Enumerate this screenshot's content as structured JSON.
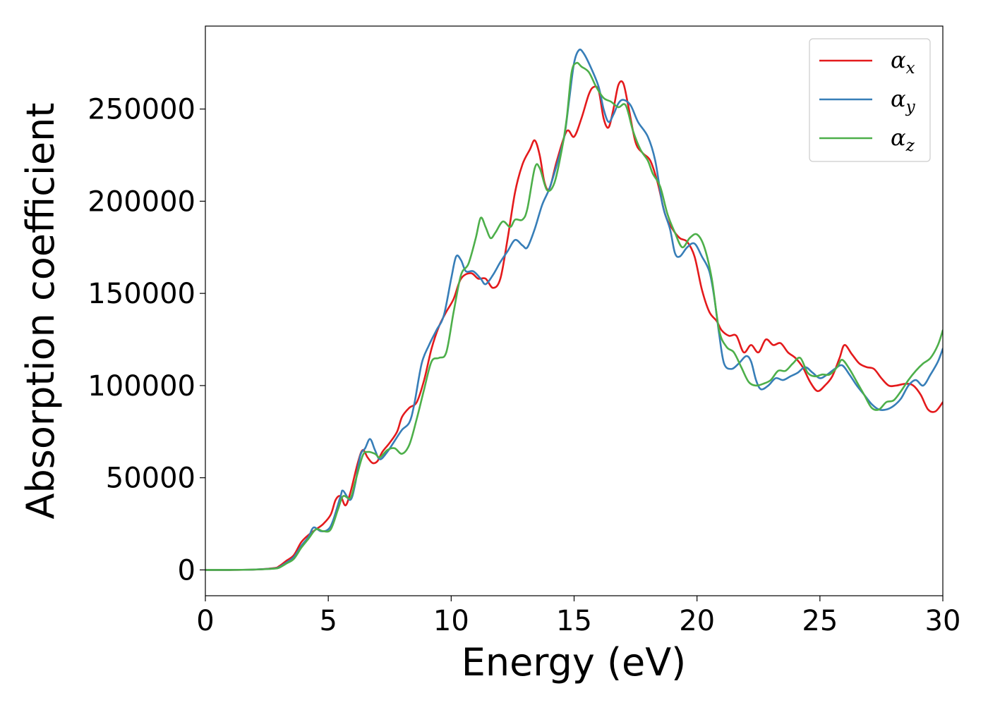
{
  "chart_data": {
    "type": "line",
    "title": "",
    "xlabel": "Energy (eV)",
    "ylabel": "Absorption coefficient",
    "xlim": [
      0,
      30
    ],
    "ylim": [
      -14000,
      295000
    ],
    "xticks": [
      0,
      5,
      10,
      15,
      20,
      25,
      30
    ],
    "yticks": [
      0,
      50000,
      100000,
      150000,
      200000,
      250000
    ],
    "grid": false,
    "legend": {
      "placement": "top-right"
    },
    "series": [
      {
        "name": "α_x",
        "symbol": "α",
        "subscript": "x",
        "color": "#e41a1c",
        "points": [
          [
            0,
            0
          ],
          [
            1,
            0
          ],
          [
            2,
            200
          ],
          [
            2.8,
            1000
          ],
          [
            3,
            2000
          ],
          [
            3.3,
            5000
          ],
          [
            3.6,
            8000
          ],
          [
            3.9,
            15000
          ],
          [
            4.2,
            19000
          ],
          [
            4.5,
            22000
          ],
          [
            4.8,
            25000
          ],
          [
            5.1,
            30000
          ],
          [
            5.3,
            38000
          ],
          [
            5.5,
            40000
          ],
          [
            5.7,
            35000
          ],
          [
            5.9,
            42000
          ],
          [
            6.2,
            58000
          ],
          [
            6.4,
            65000
          ],
          [
            6.6,
            61000
          ],
          [
            6.8,
            58000
          ],
          [
            7.0,
            59000
          ],
          [
            7.2,
            64000
          ],
          [
            7.5,
            69000
          ],
          [
            7.8,
            75000
          ],
          [
            8.0,
            83000
          ],
          [
            8.3,
            88000
          ],
          [
            8.6,
            91000
          ],
          [
            8.9,
            103000
          ],
          [
            9.2,
            120000
          ],
          [
            9.5,
            132000
          ],
          [
            9.8,
            140000
          ],
          [
            10.1,
            147000
          ],
          [
            10.4,
            158000
          ],
          [
            10.8,
            161000
          ],
          [
            11.1,
            158000
          ],
          [
            11.4,
            158000
          ],
          [
            11.7,
            153000
          ],
          [
            12.0,
            158000
          ],
          [
            12.3,
            180000
          ],
          [
            12.6,
            205000
          ],
          [
            12.9,
            220000
          ],
          [
            13.2,
            228000
          ],
          [
            13.4,
            233000
          ],
          [
            13.6,
            225000
          ],
          [
            13.8,
            210000
          ],
          [
            14.0,
            207000
          ],
          [
            14.3,
            222000
          ],
          [
            14.7,
            238000
          ],
          [
            15.0,
            235000
          ],
          [
            15.3,
            245000
          ],
          [
            15.6,
            258000
          ],
          [
            15.8,
            262000
          ],
          [
            16.0,
            260000
          ],
          [
            16.2,
            245000
          ],
          [
            16.4,
            240000
          ],
          [
            16.6,
            250000
          ],
          [
            16.8,
            263000
          ],
          [
            17.0,
            264000
          ],
          [
            17.2,
            252000
          ],
          [
            17.5,
            232000
          ],
          [
            17.8,
            226000
          ],
          [
            18.1,
            222000
          ],
          [
            18.4,
            210000
          ],
          [
            18.7,
            193000
          ],
          [
            19.0,
            185000
          ],
          [
            19.3,
            180000
          ],
          [
            19.6,
            178000
          ],
          [
            19.9,
            170000
          ],
          [
            20.2,
            152000
          ],
          [
            20.5,
            140000
          ],
          [
            20.8,
            135000
          ],
          [
            21.0,
            130000
          ],
          [
            21.3,
            127000
          ],
          [
            21.6,
            127000
          ],
          [
            21.9,
            118000
          ],
          [
            22.2,
            122000
          ],
          [
            22.5,
            118000
          ],
          [
            22.8,
            125000
          ],
          [
            23.1,
            122000
          ],
          [
            23.4,
            123000
          ],
          [
            23.7,
            118000
          ],
          [
            24.0,
            115000
          ],
          [
            24.3,
            110000
          ],
          [
            24.6,
            102000
          ],
          [
            24.9,
            97000
          ],
          [
            25.2,
            100000
          ],
          [
            25.5,
            105000
          ],
          [
            25.8,
            115000
          ],
          [
            26.0,
            122000
          ],
          [
            26.3,
            117000
          ],
          [
            26.6,
            112000
          ],
          [
            26.9,
            110000
          ],
          [
            27.2,
            109000
          ],
          [
            27.5,
            104000
          ],
          [
            27.8,
            100000
          ],
          [
            28.1,
            100000
          ],
          [
            28.5,
            101000
          ],
          [
            28.8,
            100000
          ],
          [
            29.1,
            95000
          ],
          [
            29.4,
            87000
          ],
          [
            29.7,
            86000
          ],
          [
            30.0,
            91000
          ]
        ]
      },
      {
        "name": "α_y",
        "symbol": "α",
        "subscript": "y",
        "color": "#377eb8",
        "points": [
          [
            0,
            0
          ],
          [
            1,
            0
          ],
          [
            2,
            200
          ],
          [
            2.8,
            800
          ],
          [
            3,
            1500
          ],
          [
            3.3,
            4000
          ],
          [
            3.6,
            7000
          ],
          [
            3.9,
            13000
          ],
          [
            4.2,
            18000
          ],
          [
            4.4,
            23000
          ],
          [
            4.7,
            21000
          ],
          [
            5.0,
            22000
          ],
          [
            5.2,
            27000
          ],
          [
            5.5,
            40000
          ],
          [
            5.6,
            43000
          ],
          [
            5.9,
            38000
          ],
          [
            6.1,
            47000
          ],
          [
            6.3,
            62000
          ],
          [
            6.5,
            66000
          ],
          [
            6.7,
            71000
          ],
          [
            6.9,
            65000
          ],
          [
            7.1,
            60000
          ],
          [
            7.4,
            64000
          ],
          [
            7.7,
            70000
          ],
          [
            8.0,
            76000
          ],
          [
            8.3,
            80000
          ],
          [
            8.5,
            90000
          ],
          [
            8.8,
            112000
          ],
          [
            9.1,
            122000
          ],
          [
            9.4,
            130000
          ],
          [
            9.7,
            138000
          ],
          [
            10.0,
            158000
          ],
          [
            10.2,
            170000
          ],
          [
            10.4,
            168000
          ],
          [
            10.6,
            162000
          ],
          [
            10.9,
            162000
          ],
          [
            11.2,
            158000
          ],
          [
            11.4,
            155000
          ],
          [
            11.7,
            160000
          ],
          [
            12.0,
            167000
          ],
          [
            12.3,
            173000
          ],
          [
            12.6,
            179000
          ],
          [
            12.9,
            176000
          ],
          [
            13.1,
            175000
          ],
          [
            13.4,
            185000
          ],
          [
            13.7,
            198000
          ],
          [
            14.0,
            207000
          ],
          [
            14.3,
            220000
          ],
          [
            14.6,
            235000
          ],
          [
            14.8,
            255000
          ],
          [
            15.0,
            275000
          ],
          [
            15.2,
            282000
          ],
          [
            15.4,
            280000
          ],
          [
            15.7,
            272000
          ],
          [
            16.0,
            262000
          ],
          [
            16.2,
            250000
          ],
          [
            16.4,
            243000
          ],
          [
            16.6,
            247000
          ],
          [
            16.8,
            253000
          ],
          [
            17.0,
            255000
          ],
          [
            17.3,
            252000
          ],
          [
            17.6,
            243000
          ],
          [
            18.0,
            235000
          ],
          [
            18.3,
            222000
          ],
          [
            18.6,
            198000
          ],
          [
            18.9,
            185000
          ],
          [
            19.1,
            172000
          ],
          [
            19.3,
            170000
          ],
          [
            19.6,
            175000
          ],
          [
            19.9,
            177000
          ],
          [
            20.2,
            170000
          ],
          [
            20.5,
            162000
          ],
          [
            20.7,
            148000
          ],
          [
            20.9,
            128000
          ],
          [
            21.1,
            112000
          ],
          [
            21.4,
            109000
          ],
          [
            21.7,
            112000
          ],
          [
            22.0,
            116000
          ],
          [
            22.2,
            113000
          ],
          [
            22.4,
            103000
          ],
          [
            22.6,
            98000
          ],
          [
            22.9,
            100000
          ],
          [
            23.2,
            104000
          ],
          [
            23.5,
            103000
          ],
          [
            23.8,
            105000
          ],
          [
            24.1,
            107000
          ],
          [
            24.4,
            110000
          ],
          [
            24.7,
            107000
          ],
          [
            25.0,
            104000
          ],
          [
            25.3,
            106000
          ],
          [
            25.6,
            109000
          ],
          [
            25.9,
            111000
          ],
          [
            26.2,
            106000
          ],
          [
            26.5,
            100000
          ],
          [
            26.8,
            95000
          ],
          [
            27.1,
            90000
          ],
          [
            27.4,
            87000
          ],
          [
            27.7,
            87000
          ],
          [
            28.0,
            89000
          ],
          [
            28.3,
            93000
          ],
          [
            28.6,
            100000
          ],
          [
            28.9,
            103000
          ],
          [
            29.2,
            100000
          ],
          [
            29.5,
            106000
          ],
          [
            29.8,
            113000
          ],
          [
            30.0,
            120000
          ]
        ]
      },
      {
        "name": "α_z",
        "symbol": "α",
        "subscript": "z",
        "color": "#4daf4a",
        "points": [
          [
            0,
            0
          ],
          [
            1,
            0
          ],
          [
            2,
            200
          ],
          [
            2.8,
            700
          ],
          [
            3,
            1200
          ],
          [
            3.3,
            3500
          ],
          [
            3.6,
            6000
          ],
          [
            3.9,
            12000
          ],
          [
            4.2,
            17000
          ],
          [
            4.5,
            22000
          ],
          [
            4.8,
            21000
          ],
          [
            5.1,
            22000
          ],
          [
            5.4,
            33000
          ],
          [
            5.6,
            40000
          ],
          [
            5.9,
            39000
          ],
          [
            6.1,
            48000
          ],
          [
            6.4,
            62000
          ],
          [
            6.6,
            64000
          ],
          [
            6.9,
            63000
          ],
          [
            7.1,
            61000
          ],
          [
            7.4,
            65000
          ],
          [
            7.7,
            66000
          ],
          [
            8.0,
            63000
          ],
          [
            8.3,
            68000
          ],
          [
            8.6,
            82000
          ],
          [
            8.9,
            98000
          ],
          [
            9.2,
            113000
          ],
          [
            9.5,
            115000
          ],
          [
            9.8,
            118000
          ],
          [
            10.1,
            140000
          ],
          [
            10.4,
            160000
          ],
          [
            10.7,
            166000
          ],
          [
            11.0,
            180000
          ],
          [
            11.2,
            191000
          ],
          [
            11.4,
            186000
          ],
          [
            11.6,
            180000
          ],
          [
            11.8,
            183000
          ],
          [
            12.1,
            189000
          ],
          [
            12.4,
            186000
          ],
          [
            12.6,
            190000
          ],
          [
            12.9,
            190000
          ],
          [
            13.1,
            196000
          ],
          [
            13.4,
            218000
          ],
          [
            13.6,
            218000
          ],
          [
            13.9,
            206000
          ],
          [
            14.2,
            210000
          ],
          [
            14.5,
            228000
          ],
          [
            14.7,
            245000
          ],
          [
            14.9,
            270000
          ],
          [
            15.1,
            275000
          ],
          [
            15.3,
            273000
          ],
          [
            15.6,
            270000
          ],
          [
            15.9,
            262000
          ],
          [
            16.2,
            256000
          ],
          [
            16.5,
            254000
          ],
          [
            16.8,
            251000
          ],
          [
            17.1,
            252000
          ],
          [
            17.4,
            238000
          ],
          [
            17.7,
            228000
          ],
          [
            18.0,
            222000
          ],
          [
            18.2,
            215000
          ],
          [
            18.5,
            208000
          ],
          [
            18.8,
            193000
          ],
          [
            19.1,
            183000
          ],
          [
            19.4,
            175000
          ],
          [
            19.7,
            180000
          ],
          [
            20.0,
            182000
          ],
          [
            20.3,
            175000
          ],
          [
            20.6,
            158000
          ],
          [
            20.9,
            130000
          ],
          [
            21.2,
            121000
          ],
          [
            21.5,
            118000
          ],
          [
            21.8,
            110000
          ],
          [
            22.1,
            102000
          ],
          [
            22.4,
            100000
          ],
          [
            22.7,
            101000
          ],
          [
            23.0,
            103000
          ],
          [
            23.3,
            108000
          ],
          [
            23.6,
            108000
          ],
          [
            23.9,
            112000
          ],
          [
            24.2,
            115000
          ],
          [
            24.5,
            107000
          ],
          [
            24.8,
            105000
          ],
          [
            25.1,
            106000
          ],
          [
            25.4,
            106000
          ],
          [
            25.7,
            110000
          ],
          [
            25.9,
            114000
          ],
          [
            26.2,
            109000
          ],
          [
            26.5,
            102000
          ],
          [
            26.8,
            95000
          ],
          [
            27.1,
            88000
          ],
          [
            27.4,
            87000
          ],
          [
            27.7,
            91000
          ],
          [
            28.0,
            92000
          ],
          [
            28.3,
            97000
          ],
          [
            28.6,
            103000
          ],
          [
            28.9,
            108000
          ],
          [
            29.2,
            112000
          ],
          [
            29.5,
            115000
          ],
          [
            29.8,
            122000
          ],
          [
            30.0,
            130000
          ]
        ]
      }
    ]
  }
}
